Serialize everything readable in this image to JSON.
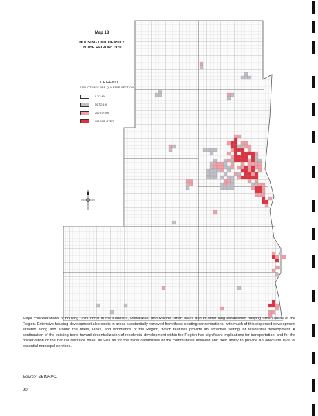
{
  "map": {
    "label": "Map 18",
    "title_line1": "HOUSING UNIT DENSITY",
    "title_line2": "IN THE REGION: 1970"
  },
  "legend": {
    "title": "LEGEND",
    "subtitle": "STRUCTURES PER QUARTER SECTION",
    "items": [
      {
        "label": "0 TO 49",
        "color": "#f7f7f7"
      },
      {
        "label": "50 TO 199",
        "color": "#bfc0c8"
      },
      {
        "label": "200 TO 699",
        "color": "#f2a0a8"
      },
      {
        "label": "700 AND OVER",
        "color": "#e0303c"
      }
    ]
  },
  "caption": "Major concentrations of housing units occur in the Kenosha, Milwaukee, and Racine urban areas and in other long established outlying urban areas of the Region. Extensive housing development also exists in areas substantially removed from these existing concentrations, with much of this dispersed development situated along and around the rivers, lakes, and woodlands of the Region, which features provide an attractive setting for residential development. A continuation of the existing trend toward decentralization of residential development within the Region has significant implications for transportation, and for the preservation of the natural resource base, as well as for the fiscal capabilities of the communities involved and their ability to provide an adequate level of essential municipal services.",
  "source": "Source: SEWRPC.",
  "page_number": "90"
}
